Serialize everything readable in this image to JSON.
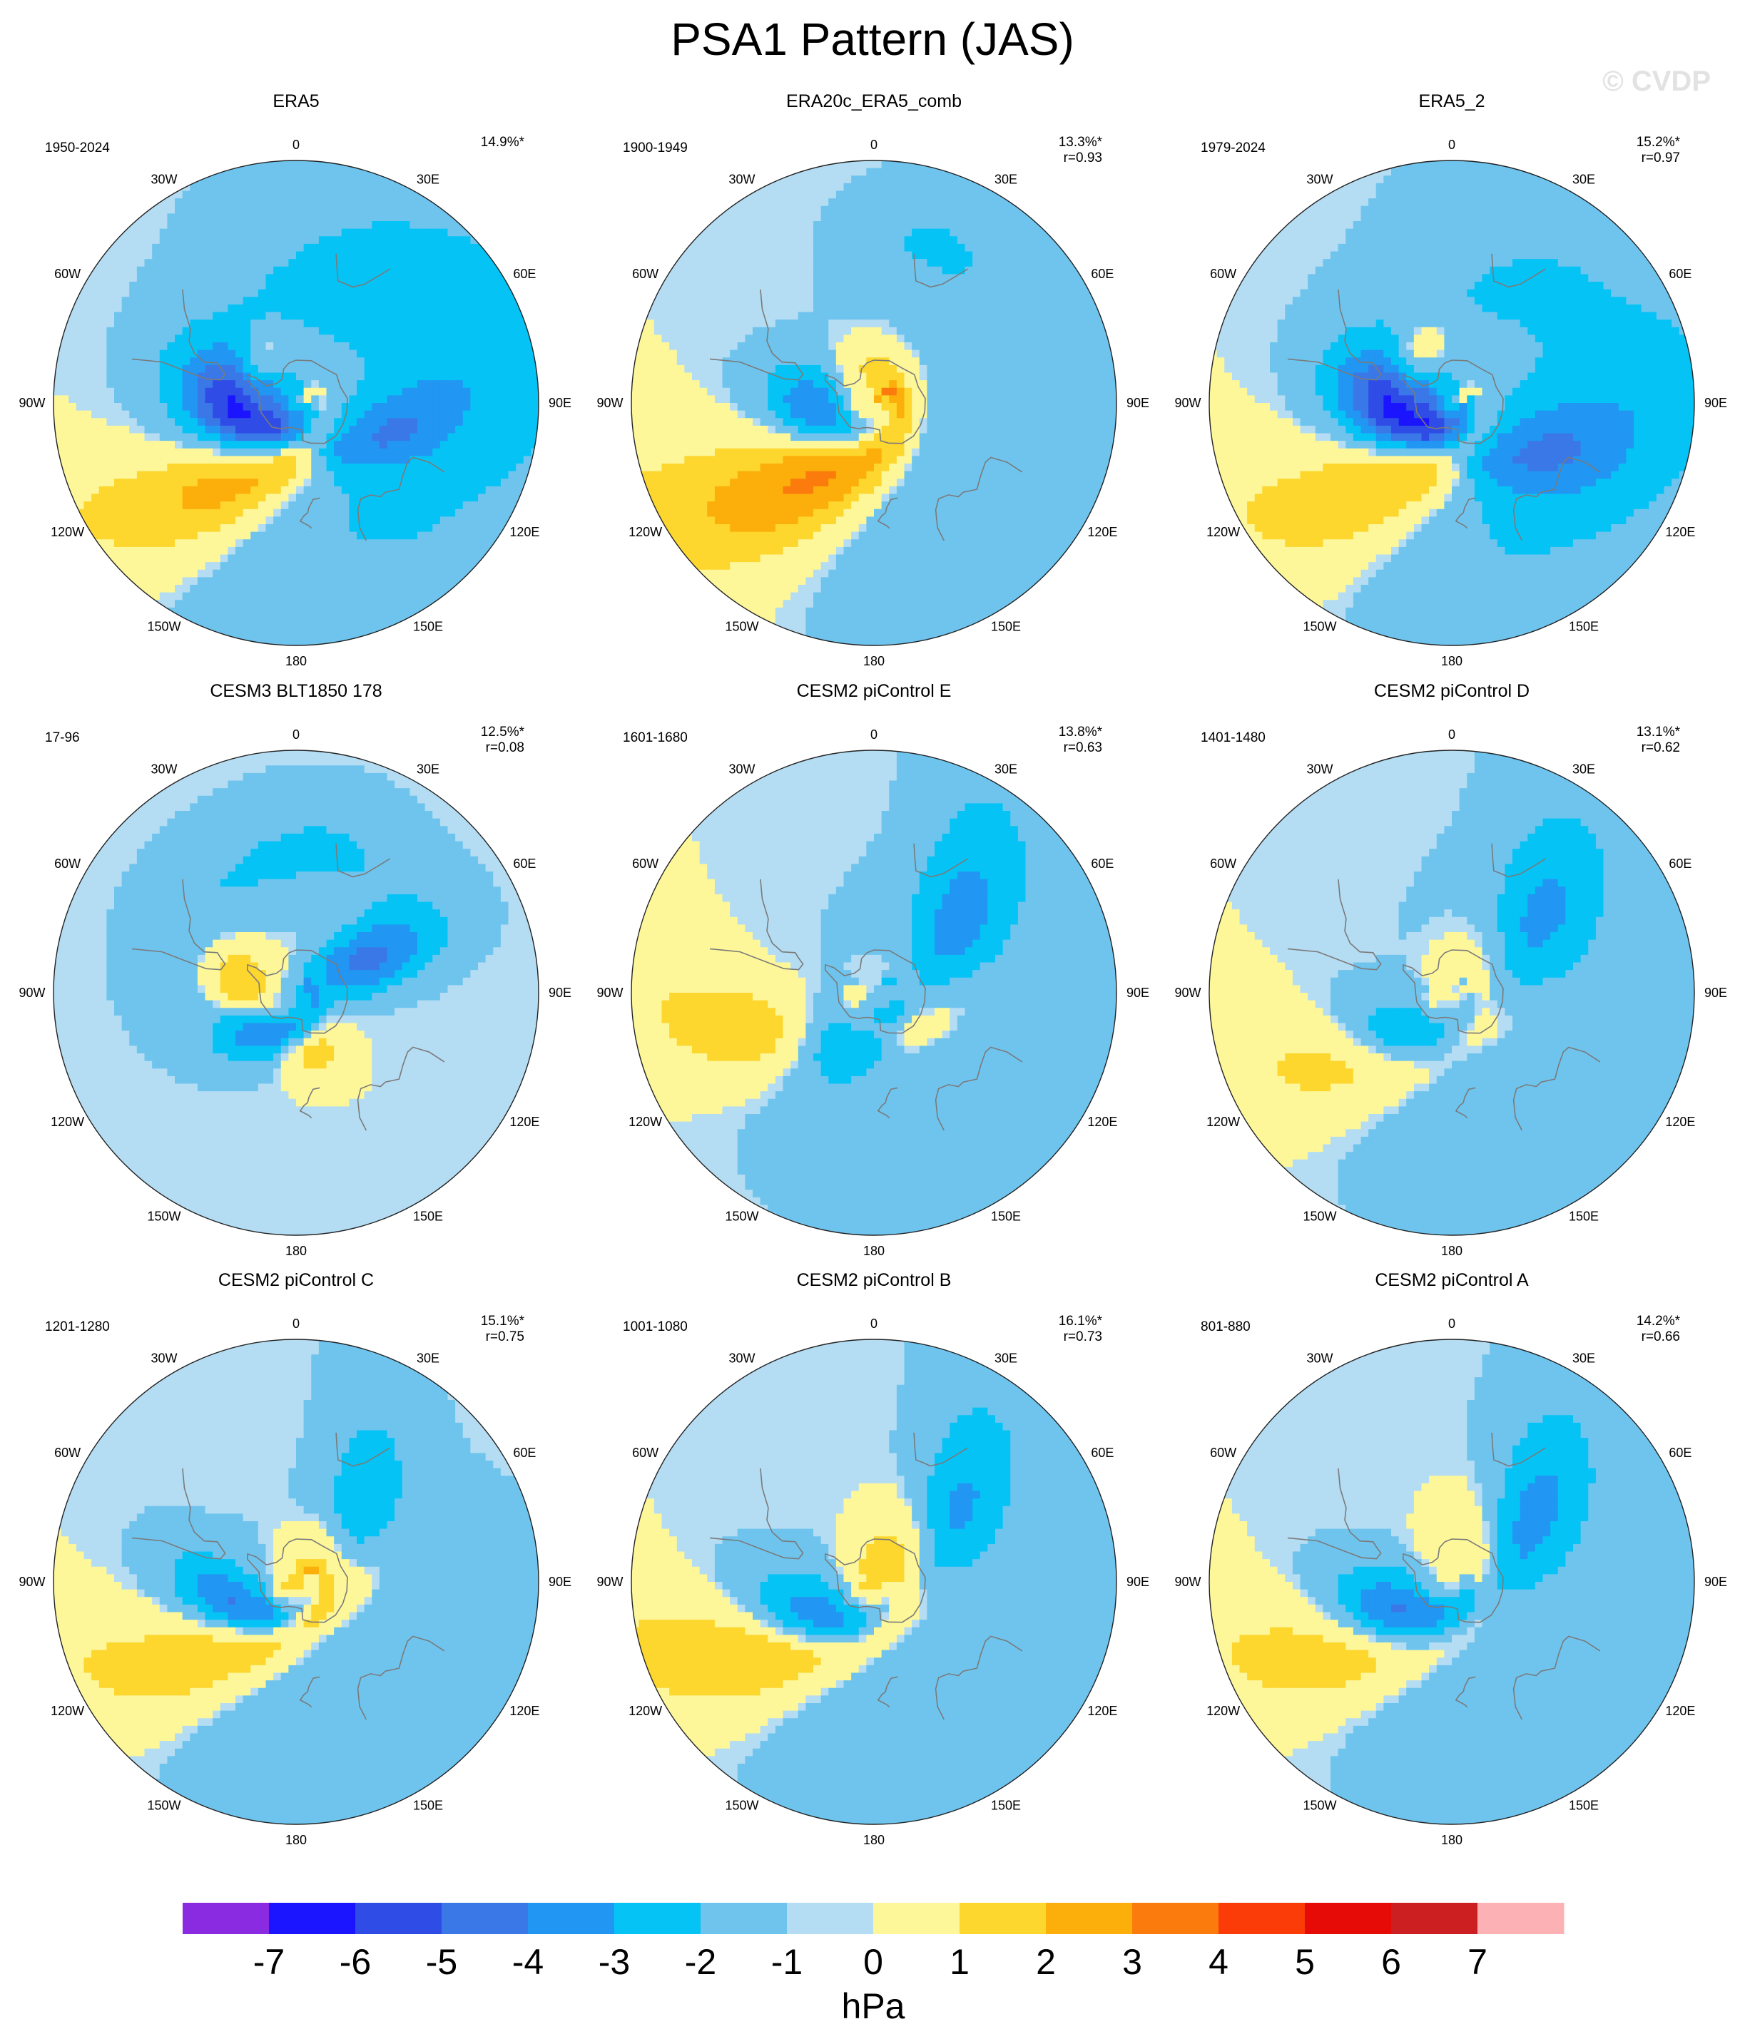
{
  "title": "PSA1 Pattern (JAS)",
  "watermark": "© CVDP",
  "longitude_labels": [
    "0",
    "30E",
    "60E",
    "90E",
    "120E",
    "150E",
    "180",
    "150W",
    "120W",
    "90W",
    "60W",
    "30W"
  ],
  "colors": {
    "neg7": "#8a2be2",
    "neg6": "#1b14ff",
    "neg5": "#2f4de6",
    "neg4": "#3a78e8",
    "neg3": "#2196f3",
    "neg2": "#06c3f5",
    "neg1": "#6fc4ee",
    "zero_neg": "#b4dcf2",
    "zero_pos": "#fdf79a",
    "pos1": "#fdd62e",
    "pos2": "#fcae0a",
    "pos3": "#fb7c0c",
    "pos4": "#fb3b08",
    "pos5": "#e60b06",
    "pos6": "#cb1f22",
    "pos7": "#fcb2b5",
    "coast": "#7a7a7a",
    "frame": "#222222"
  },
  "colorbar": {
    "colors": [
      "#8a2be2",
      "#1b14ff",
      "#2f4de6",
      "#3a78e8",
      "#2196f3",
      "#06c3f5",
      "#6fc4ee",
      "#b4dcf2",
      "#fdf79a",
      "#fdd62e",
      "#fcae0a",
      "#fb7c0c",
      "#fb3b08",
      "#e60b06",
      "#cb1f22",
      "#fcb2b5"
    ],
    "tick_labels": [
      "-7",
      "-6",
      "-5",
      "-4",
      "-3",
      "-2",
      "-1",
      "0",
      "1",
      "2",
      "3",
      "4",
      "5",
      "6",
      "7"
    ],
    "unit": "hPa"
  },
  "panels": [
    {
      "name": "ERA5",
      "years": "1950-2024",
      "pct": "14.9%*",
      "r": "",
      "blobs": [
        {
          "lon": 255,
          "lat": -66,
          "a": 26,
          "b": 12,
          "rot": 40,
          "amp": -4.6
        },
        {
          "lon": 215,
          "lat": -48,
          "a": 40,
          "b": 12,
          "rot": 60,
          "amp": 3.0
        },
        {
          "lon": 320,
          "lat": -64,
          "a": 12,
          "b": 7,
          "rot": 20,
          "amp": 1.6
        },
        {
          "lon": 110,
          "lat": -48,
          "a": 26,
          "b": 10,
          "rot": 130,
          "amp": -2.2
        },
        {
          "lon": 20,
          "lat": -30,
          "a": 80,
          "b": 25,
          "rot": 30,
          "amp": -1.0
        },
        {
          "lon": 140,
          "lat": -30,
          "a": 60,
          "b": 30,
          "rot": 0,
          "amp": -1.0
        }
      ]
    },
    {
      "name": "ERA20c_ERA5_comb",
      "years": "1900-1949",
      "pct": "13.3%*",
      "r": "r=0.93",
      "blobs": [
        {
          "lon": 250,
          "lat": -68,
          "a": 22,
          "b": 11,
          "rot": 40,
          "amp": -3.8
        },
        {
          "lon": 215,
          "lat": -50,
          "a": 42,
          "b": 14,
          "rot": 60,
          "amp": 3.6
        },
        {
          "lon": 350,
          "lat": -78,
          "a": 22,
          "b": 12,
          "rot": 0,
          "amp": 1.8
        },
        {
          "lon": 120,
          "lat": -32,
          "a": 60,
          "b": 25,
          "rot": 0,
          "amp": -0.9
        },
        {
          "lon": 20,
          "lat": -20,
          "a": 18,
          "b": 10,
          "rot": 0,
          "amp": -0.9
        }
      ]
    },
    {
      "name": "ERA5_2",
      "years": "1979-2024",
      "pct": "15.2%*",
      "r": "r=0.97",
      "blobs": [
        {
          "lon": 255,
          "lat": -66,
          "a": 26,
          "b": 12,
          "rot": 40,
          "amp": -5.0
        },
        {
          "lon": 215,
          "lat": -48,
          "a": 42,
          "b": 13,
          "rot": 60,
          "amp": 2.4
        },
        {
          "lon": 325,
          "lat": -62,
          "a": 12,
          "b": 7,
          "rot": 20,
          "amp": 1.8
        },
        {
          "lon": 120,
          "lat": -45,
          "a": 30,
          "b": 13,
          "rot": 130,
          "amp": -2.4
        },
        {
          "lon": 30,
          "lat": -30,
          "a": 60,
          "b": 25,
          "rot": 30,
          "amp": -1.0
        },
        {
          "lon": 150,
          "lat": -28,
          "a": 45,
          "b": 25,
          "rot": 0,
          "amp": -1.0
        }
      ]
    },
    {
      "name": "CESM3 BLT1850 178",
      "years": "17-96",
      "pct": "12.5%*",
      "r": "r=0.08",
      "blobs": [
        {
          "lon": 65,
          "lat": -55,
          "a": 20,
          "b": 10,
          "rot": 90,
          "amp": -3.2
        },
        {
          "lon": 215,
          "lat": -68,
          "a": 18,
          "b": 9,
          "rot": 40,
          "amp": -3.0
        },
        {
          "lon": 275,
          "lat": -65,
          "a": 15,
          "b": 9,
          "rot": 40,
          "amp": 2.4
        },
        {
          "lon": 165,
          "lat": -60,
          "a": 10,
          "b": 7,
          "rot": 0,
          "amp": 1.6
        },
        {
          "lon": 320,
          "lat": -35,
          "a": 40,
          "b": 14,
          "rot": 0,
          "amp": -0.9
        },
        {
          "lon": 20,
          "lat": -25,
          "a": 25,
          "b": 12,
          "rot": 0,
          "amp": -0.8
        }
      ]
    },
    {
      "name": "CESM2 piControl E",
      "years": "1601-1680",
      "pct": "13.8%*",
      "r": "r=0.63",
      "blobs": [
        {
          "lon": 210,
          "lat": -65,
          "a": 20,
          "b": 10,
          "rot": 40,
          "amp": -3.2
        },
        {
          "lon": 55,
          "lat": -48,
          "a": 35,
          "b": 12,
          "rot": 120,
          "amp": -2.4
        },
        {
          "lon": 110,
          "lat": -68,
          "a": 30,
          "b": 13,
          "rot": 150,
          "amp": 1.5
        },
        {
          "lon": 245,
          "lat": -45,
          "a": 35,
          "b": 12,
          "rot": 60,
          "amp": 2.2
        },
        {
          "lon": 130,
          "lat": -35,
          "a": 60,
          "b": 25,
          "rot": 0,
          "amp": -0.9
        }
      ]
    },
    {
      "name": "CESM2 piControl D",
      "years": "1401-1480",
      "pct": "13.1%*",
      "r": "r=0.62",
      "blobs": [
        {
          "lon": 220,
          "lat": -64,
          "a": 22,
          "b": 9,
          "rot": 40,
          "amp": -2.6
        },
        {
          "lon": 55,
          "lat": -48,
          "a": 32,
          "b": 12,
          "rot": 120,
          "amp": -2.2
        },
        {
          "lon": 90,
          "lat": -72,
          "a": 30,
          "b": 13,
          "rot": 150,
          "amp": 1.6
        },
        {
          "lon": 230,
          "lat": -42,
          "a": 38,
          "b": 12,
          "rot": 60,
          "amp": 1.6
        },
        {
          "lon": 120,
          "lat": -30,
          "a": 60,
          "b": 25,
          "rot": 0,
          "amp": -0.9
        }
      ]
    },
    {
      "name": "CESM2 piControl C",
      "years": "1201-1280",
      "pct": "15.1%*",
      "r": "r=0.75",
      "blobs": [
        {
          "lon": 240,
          "lat": -64,
          "a": 25,
          "b": 8,
          "rot": 40,
          "amp": -3.4
        },
        {
          "lon": 45,
          "lat": -50,
          "a": 30,
          "b": 10,
          "rot": 120,
          "amp": -1.8
        },
        {
          "lon": 90,
          "lat": -75,
          "a": 25,
          "b": 12,
          "rot": 150,
          "amp": 2.2
        },
        {
          "lon": 225,
          "lat": -44,
          "a": 40,
          "b": 12,
          "rot": 60,
          "amp": 2.2
        },
        {
          "lon": 150,
          "lat": -32,
          "a": 60,
          "b": 25,
          "rot": 0,
          "amp": -0.9
        }
      ]
    },
    {
      "name": "CESM2 piControl B",
      "years": "1001-1080",
      "pct": "16.1%*",
      "r": "r=0.73",
      "blobs": [
        {
          "lon": 230,
          "lat": -62,
          "a": 24,
          "b": 9,
          "rot": 40,
          "amp": -3.6
        },
        {
          "lon": 55,
          "lat": -50,
          "a": 34,
          "b": 11,
          "rot": 120,
          "amp": -2.2
        },
        {
          "lon": 80,
          "lat": -76,
          "a": 30,
          "b": 13,
          "rot": 150,
          "amp": 2.4
        },
        {
          "lon": 230,
          "lat": -42,
          "a": 42,
          "b": 12,
          "rot": 60,
          "amp": 2.4
        },
        {
          "lon": 140,
          "lat": -32,
          "a": 60,
          "b": 25,
          "rot": 0,
          "amp": -0.9
        }
      ]
    },
    {
      "name": "CESM2 piControl A",
      "years": "801-880",
      "pct": "14.2%*",
      "r": "r=0.66",
      "blobs": [
        {
          "lon": 230,
          "lat": -64,
          "a": 24,
          "b": 10,
          "rot": 40,
          "amp": -3.8
        },
        {
          "lon": 55,
          "lat": -50,
          "a": 32,
          "b": 11,
          "rot": 120,
          "amp": -2.2
        },
        {
          "lon": 60,
          "lat": -74,
          "a": 30,
          "b": 12,
          "rot": 150,
          "amp": 1.5
        },
        {
          "lon": 230,
          "lat": -42,
          "a": 40,
          "b": 12,
          "rot": 60,
          "amp": 2.0
        },
        {
          "lon": 130,
          "lat": -32,
          "a": 60,
          "b": 25,
          "rot": 0,
          "amp": -0.9
        }
      ]
    }
  ]
}
